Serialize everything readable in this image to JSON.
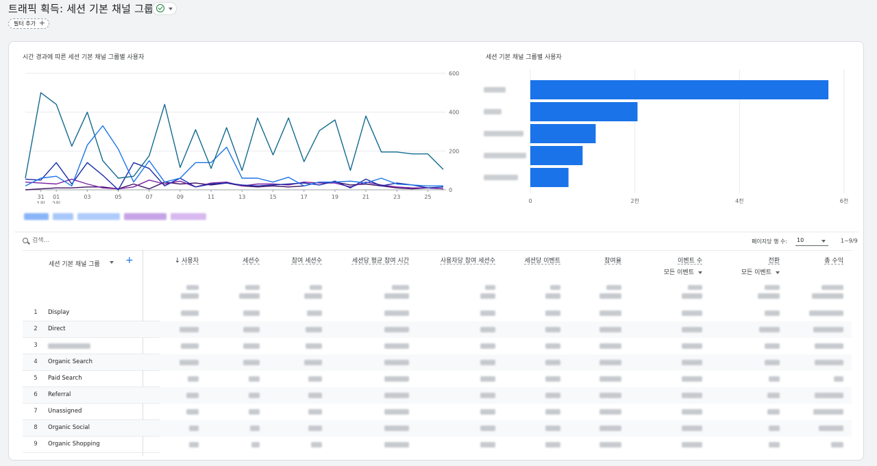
{
  "page": {
    "title": "트래픽 획득: 세션 기본 채널 그룹",
    "filter_chip_label": "필터 추가"
  },
  "line_chart": {
    "title": "시간 경과에 따른 세션 기본 채널 그룹별 사용자",
    "x_tick_labels": [
      "31",
      "01",
      "03",
      "05",
      "07",
      "09",
      "11",
      "13",
      "15",
      "17",
      "19",
      "21",
      "23",
      "25"
    ],
    "x_month_labels": [
      "1월",
      "2월"
    ],
    "y_tick_labels": [
      "600",
      "400",
      "200",
      "0"
    ]
  },
  "bar_chart": {
    "title": "세션 기본 채널 그룹별 사용자",
    "x_tick_labels": [
      "0",
      "2천",
      "4천",
      "6천"
    ],
    "color": "#1a73e8"
  },
  "chart_data": [
    {
      "type": "line",
      "title": "시간 경과에 따른 세션 기본 채널 그룹별 사용자",
      "x": [
        "30",
        "31",
        "01",
        "02",
        "03",
        "04",
        "05",
        "06",
        "07",
        "08",
        "09",
        "10",
        "11",
        "12",
        "13",
        "14",
        "15",
        "16",
        "17",
        "18",
        "19",
        "20",
        "21",
        "22",
        "23",
        "24",
        "25",
        "26"
      ],
      "ylim": [
        0,
        600
      ],
      "y_axis_side": "right",
      "series": [
        {
          "color": "#12698f",
          "values": [
            60,
            500,
            440,
            225,
            400,
            150,
            60,
            70,
            175,
            440,
            115,
            310,
            110,
            320,
            100,
            370,
            180,
            370,
            145,
            305,
            360,
            100,
            380,
            195,
            195,
            185,
            185,
            105
          ]
        },
        {
          "color": "#1a73e8",
          "values": [
            20,
            60,
            70,
            20,
            230,
            330,
            210,
            40,
            150,
            40,
            60,
            140,
            140,
            220,
            60,
            60,
            40,
            65,
            20,
            40,
            40,
            45,
            35,
            60,
            30,
            25,
            20,
            20
          ]
        },
        {
          "color": "#1729a8",
          "values": [
            55,
            50,
            140,
            30,
            140,
            75,
            0,
            140,
            110,
            20,
            60,
            15,
            30,
            35,
            25,
            20,
            25,
            30,
            35,
            25,
            45,
            10,
            55,
            20,
            35,
            25,
            10,
            15
          ]
        },
        {
          "color": "#7b1fa2",
          "values": [
            40,
            35,
            30,
            55,
            30,
            10,
            5,
            15,
            50,
            30,
            45,
            15,
            35,
            40,
            20,
            30,
            30,
            25,
            40,
            35,
            35,
            15,
            40,
            25,
            15,
            10,
            10,
            5
          ]
        },
        {
          "color": "#3c0f63",
          "values": [
            0,
            5,
            10,
            10,
            15,
            15,
            5,
            30,
            5,
            40,
            30,
            35,
            25,
            35,
            20,
            15,
            20,
            15,
            20,
            40,
            40,
            25,
            30,
            20,
            10,
            5,
            10,
            5
          ]
        }
      ]
    },
    {
      "type": "bar",
      "orientation": "horizontal",
      "title": "세션 기본 채널 그룹별 사용자",
      "xlim": [
        0,
        6000
      ],
      "values": [
        5700,
        2050,
        1250,
        1000,
        730
      ],
      "color": "#1a73e8"
    }
  ],
  "table": {
    "search_placeholder": "검색...",
    "rows_per_page_label": "페이지당 행 수:",
    "rows_per_page_value": "10",
    "page_range": "1~9/9",
    "dimension_header": "세션 기본 채널 그룹",
    "metric_headers": [
      {
        "label": "사용자",
        "sub": "",
        "sorted": true
      },
      {
        "label": "세션수",
        "sub": ""
      },
      {
        "label": "참여 세션수",
        "sub": ""
      },
      {
        "label": "세션당 평균 참여 시간",
        "sub": ""
      },
      {
        "label": "사용자당 참여 세션수",
        "sub": ""
      },
      {
        "label": "세션당 이벤트",
        "sub": ""
      },
      {
        "label": "참여율",
        "sub": ""
      },
      {
        "label": "이벤트 수",
        "sub": "모든 이벤트"
      },
      {
        "label": "전환",
        "sub": "모든 이벤트"
      },
      {
        "label": "총 수익",
        "sub": ""
      }
    ],
    "rows": [
      {
        "index": "1",
        "channel": "Display"
      },
      {
        "index": "2",
        "channel": "Direct"
      },
      {
        "index": "3",
        "channel": ""
      },
      {
        "index": "4",
        "channel": "Organic Search"
      },
      {
        "index": "5",
        "channel": "Paid Search"
      },
      {
        "index": "6",
        "channel": "Referral"
      },
      {
        "index": "7",
        "channel": "Unassigned"
      },
      {
        "index": "8",
        "channel": "Organic Social"
      },
      {
        "index": "9",
        "channel": "Organic Shopping"
      }
    ]
  },
  "colors": {
    "accent": "#1a73e8",
    "success": "#188038"
  }
}
